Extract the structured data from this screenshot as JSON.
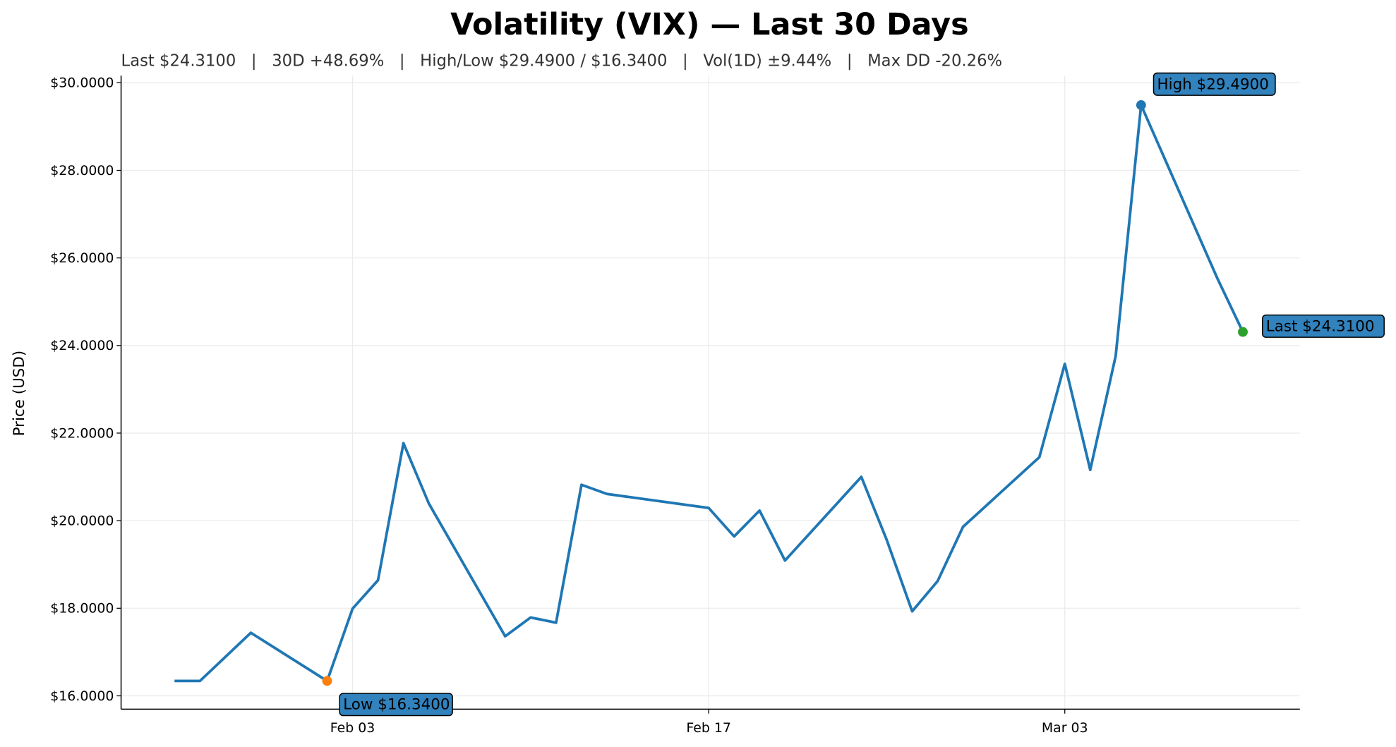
{
  "chart_data": {
    "type": "line",
    "title": "Volatility (VIX) — Last 30 Days",
    "subtitle": "Last $24.3100   |   30D +48.69%   |   High/Low $29.4900 / $16.3400   |   Vol(1D) ±9.44%   |   Max DD -20.26%",
    "xlabel": "",
    "ylabel": "Price (USD)",
    "ylim": [
      15.7,
      30.2
    ],
    "yticks": [
      16,
      18,
      20,
      22,
      24,
      26,
      28,
      30
    ],
    "ytick_labels": [
      "$16.0000",
      "$18.0000",
      "$20.0000",
      "$22.0000",
      "$24.0000",
      "$26.0000",
      "$28.0000",
      "$30.0000"
    ],
    "xticks": [
      {
        "day": 7,
        "label": "Feb 03"
      },
      {
        "day": 21,
        "label": "Feb 17"
      },
      {
        "day": 35,
        "label": "Mar 03"
      }
    ],
    "xlim_days": [
      -2.1,
      44.2
    ],
    "grid": true,
    "series": [
      {
        "name": "VIX",
        "color": "#1f77b4",
        "days": [
          0,
          1,
          3,
          6,
          7,
          8,
          9,
          10,
          13,
          14,
          15,
          16,
          17,
          21,
          22,
          23,
          24,
          27,
          28,
          29,
          30,
          31,
          34,
          35,
          36,
          37,
          38,
          41,
          42
        ],
        "dates": [
          "Jan 27",
          "Jan 28",
          "Jan 30",
          "Feb 02",
          "Feb 03",
          "Feb 04",
          "Feb 05",
          "Feb 06",
          "Feb 09",
          "Feb 10",
          "Feb 11",
          "Feb 12",
          "Feb 13",
          "Feb 17",
          "Feb 18",
          "Feb 19",
          "Feb 20",
          "Feb 23",
          "Feb 24",
          "Feb 25",
          "Feb 26",
          "Feb 27",
          "Mar 02",
          "Mar 03",
          "Mar 04",
          "Mar 05",
          "Mar 06",
          "Mar 09",
          "Mar 10"
        ],
        "values": [
          16.34,
          16.34,
          17.44,
          16.34,
          17.99,
          18.64,
          21.77,
          20.39,
          17.36,
          17.79,
          17.67,
          20.82,
          20.61,
          20.29,
          19.64,
          20.23,
          19.09,
          21.0,
          19.56,
          17.93,
          18.62,
          19.86,
          21.45,
          23.58,
          21.16,
          23.76,
          29.49,
          25.53,
          24.31
        ]
      }
    ],
    "annotations": [
      {
        "label": "High $29.4900",
        "day": 38,
        "value": 29.49,
        "marker_color": "#1f77b4"
      },
      {
        "label": "Low $16.3400",
        "day": 6,
        "value": 16.34,
        "marker_color": "#ff7f0e"
      },
      {
        "label": "Last $24.3100",
        "day": 42,
        "value": 24.31,
        "marker_color": "#2ca02c"
      }
    ],
    "annotation_box_color": "#3182bd"
  }
}
